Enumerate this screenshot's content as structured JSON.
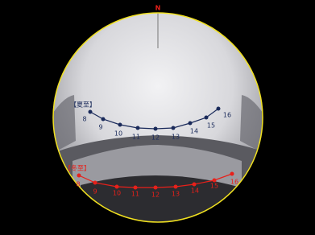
{
  "compass": "N",
  "summer": {
    "label": "【夏至】",
    "hours": [
      "8",
      "9",
      "10",
      "11",
      "12",
      "13",
      "14",
      "15",
      "16"
    ]
  },
  "winter": {
    "label": "【冬至】",
    "hours": [
      "8",
      "9",
      "10",
      "11",
      "12",
      "13",
      "14",
      "15",
      "16"
    ]
  }
}
